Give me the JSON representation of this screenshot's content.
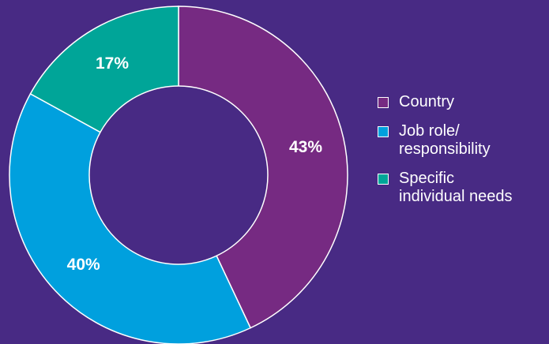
{
  "chart_data": {
    "type": "pie",
    "donut": true,
    "legend_position": "right",
    "categories": [
      "Country",
      "Job role/ responsibility",
      "Specific individual needs"
    ],
    "values": [
      43,
      40,
      17
    ],
    "value_labels": [
      "43%",
      "40%",
      "17%"
    ],
    "colors": [
      "#762a82",
      "#00a0de",
      "#00a598"
    ],
    "background": "#482a84"
  },
  "legend": {
    "items": [
      {
        "label_line1": "Country",
        "label_line2": ""
      },
      {
        "label_line1": "Job role/",
        "label_line2": "responsibility"
      },
      {
        "label_line1": "Specific",
        "label_line2": "individual needs"
      }
    ]
  }
}
